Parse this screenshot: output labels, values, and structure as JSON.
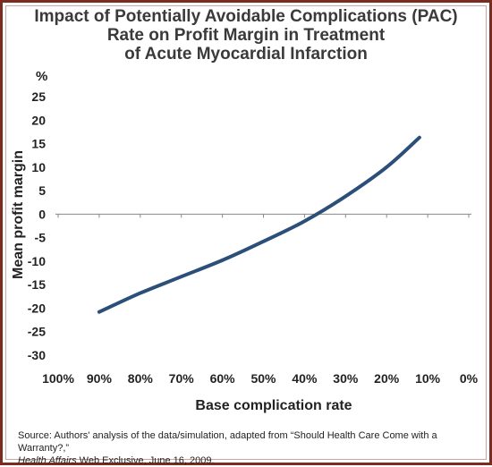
{
  "title_lines": [
    "Impact of Potentially Avoidable Complications (PAC)",
    "Rate on Profit Margin in Treatment",
    "of Acute Myocardial Infarction"
  ],
  "source": {
    "prefix": "Source: Authors' analysis of the data/simulation, adapted from “Should Health Care Come with a Warranty?,”",
    "publication": "Health Affairs",
    "suffix": " Web Exclusive, June 16, 2009."
  },
  "colors": {
    "line": "#2b4f79",
    "axis": "#8a8a8a",
    "frame": "#7a2c1e"
  },
  "chart_data": {
    "type": "line",
    "y_unit": "%",
    "xlabel": "Base complication rate",
    "ylabel": "Mean profit margin",
    "x_ticks": [
      "100%",
      "90%",
      "80%",
      "70%",
      "60%",
      "50%",
      "40%",
      "30%",
      "20%",
      "10%",
      "0%"
    ],
    "x_reversed": true,
    "xlim": [
      100,
      0
    ],
    "ylim": [
      -30,
      25
    ],
    "y_ticks": [
      25,
      20,
      15,
      10,
      5,
      0,
      -5,
      -10,
      -15,
      -20,
      -25,
      -30
    ],
    "grid": false,
    "series": [
      {
        "x": [
          90,
          80,
          70,
          60,
          50,
          40,
          30,
          20,
          12
        ],
        "y": [
          -20.8,
          -16.8,
          -13.3,
          -9.8,
          -5.8,
          -1.5,
          3.8,
          10.0,
          16.3
        ]
      }
    ]
  }
}
